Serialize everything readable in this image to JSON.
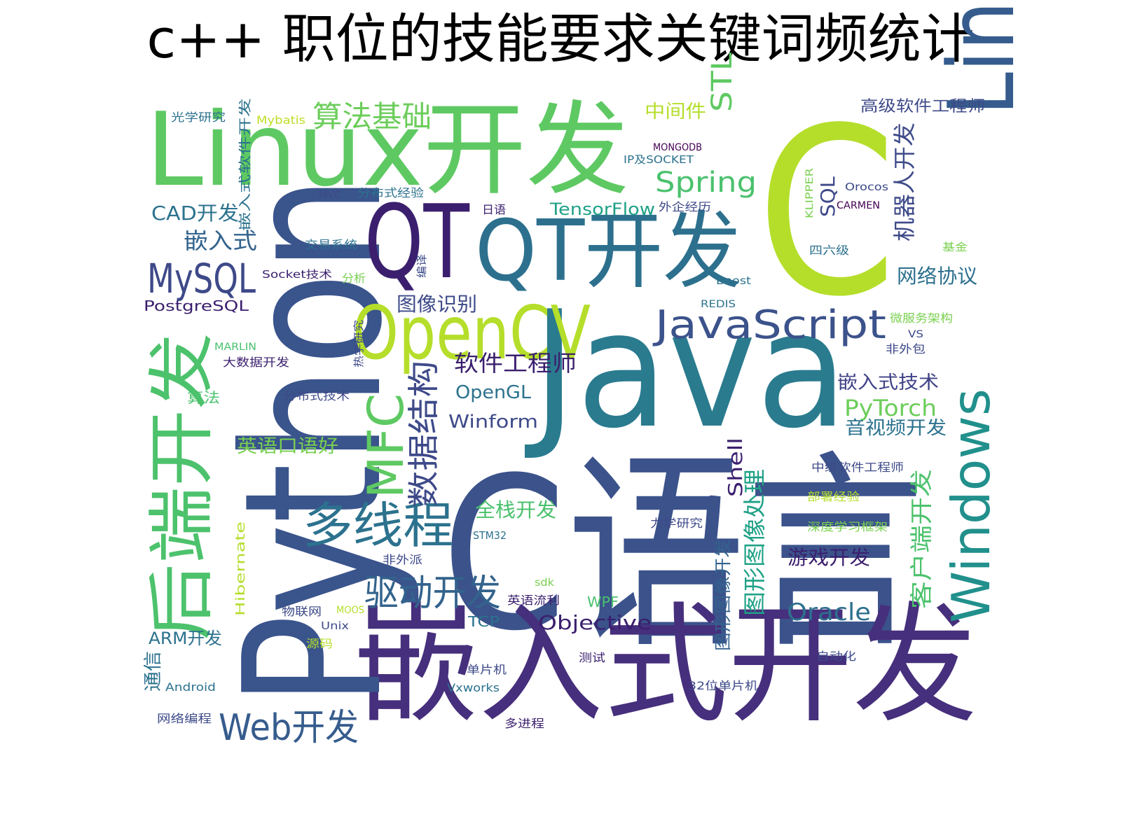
{
  "title": "c++ 职位的技能要求关键词频统计",
  "palette": "viridis",
  "words": [
    {
      "text": "Java",
      "color": "#2a7b8e"
    },
    {
      "text": "C语言",
      "color": "#3b528b"
    },
    {
      "text": "嵌入式开发",
      "color": "#462f7c"
    },
    {
      "text": "Python",
      "color": "#3a548c"
    },
    {
      "text": "C",
      "color": "#b5de2b"
    },
    {
      "text": "Linux开发",
      "color": "#5ec962"
    },
    {
      "text": "Linux",
      "color": "#365c8d"
    },
    {
      "text": "QT开发",
      "color": "#2d708e"
    },
    {
      "text": "QT",
      "color": "#3b1f6e"
    },
    {
      "text": "OpenCV",
      "color": "#b5de2b"
    },
    {
      "text": "后端开发",
      "color": "#4cc26c"
    },
    {
      "text": "Windows",
      "color": "#21908c"
    },
    {
      "text": "MFC",
      "color": "#5ec962"
    },
    {
      "text": "多线程",
      "color": "#2c728e"
    },
    {
      "text": "数据结构",
      "color": "#3e4a89"
    },
    {
      "text": "JavaScript",
      "color": "#3b528b"
    },
    {
      "text": "驱动开发",
      "color": "#33638d"
    },
    {
      "text": "Web开发",
      "color": "#365c8d"
    },
    {
      "text": "MySQL",
      "color": "#3e4989"
    },
    {
      "text": "算法基础",
      "color": "#6ccd5a"
    },
    {
      "text": "Spring",
      "color": "#4ac16d"
    },
    {
      "text": "STL",
      "color": "#5ec962"
    },
    {
      "text": "机器人开发",
      "color": "#3e4a89"
    },
    {
      "text": "客户端开发",
      "color": "#4cc26c"
    },
    {
      "text": "图形图像处理",
      "color": "#1fa187"
    },
    {
      "text": "Oracle",
      "color": "#2d708e"
    },
    {
      "text": "软件工程师",
      "color": "#3b1f6e"
    },
    {
      "text": "OpenGL",
      "color": "#2c728e"
    },
    {
      "text": "Winform",
      "color": "#3e4a89"
    },
    {
      "text": "PyTorch",
      "color": "#6ccd5a"
    },
    {
      "text": "嵌入式技术",
      "color": "#404387"
    },
    {
      "text": "音视频开发",
      "color": "#2c728e"
    },
    {
      "text": "游戏开发",
      "color": "#3b1f6e"
    },
    {
      "text": "全栈开发",
      "color": "#4ac16d"
    },
    {
      "text": "图像识别",
      "color": "#3e4a89"
    },
    {
      "text": "Objective",
      "color": "#3b1f6e"
    },
    {
      "text": "网络协议",
      "color": "#2d708e"
    },
    {
      "text": "嵌入式",
      "color": "#33638d"
    },
    {
      "text": "CAD开发",
      "color": "#2c728e"
    },
    {
      "text": "英语口语好",
      "color": "#7ad151"
    },
    {
      "text": "TensorFlow",
      "color": "#1fa187"
    },
    {
      "text": "Shell",
      "color": "#3b1f6e"
    },
    {
      "text": "图形图像开发",
      "color": "#33638d"
    },
    {
      "text": "ARM开发",
      "color": "#2c728e"
    },
    {
      "text": "SQL",
      "color": "#3e4a89"
    },
    {
      "text": "中间件",
      "color": "#b5de2b"
    },
    {
      "text": "高级软件工程师",
      "color": "#3e4a89"
    },
    {
      "text": "嵌入式软件开发",
      "color": "#2c728e"
    },
    {
      "text": "光学研究",
      "color": "#2c728e"
    },
    {
      "text": "Mybatis",
      "color": "#bddf26"
    },
    {
      "text": "MONGODB",
      "color": "#440154"
    },
    {
      "text": "IP及SOCKET",
      "color": "#2c728e"
    },
    {
      "text": "MVC",
      "color": "#3e4a89"
    },
    {
      "text": "分布式经验",
      "color": "#2c728e"
    },
    {
      "text": "日语",
      "color": "#3b1f6e"
    },
    {
      "text": "外企经历",
      "color": "#3e4a89"
    },
    {
      "text": "KLIPPER",
      "color": "#7ad151"
    },
    {
      "text": "Orocos",
      "color": "#3e4a89"
    },
    {
      "text": "CARMEN",
      "color": "#440154"
    },
    {
      "text": "交易系统",
      "color": "#2c728e"
    },
    {
      "text": "编译",
      "color": "#3e4a89"
    },
    {
      "text": "四六级",
      "color": "#2c728e"
    },
    {
      "text": "基金",
      "color": "#7ad151"
    },
    {
      "text": "Socket技术",
      "color": "#3b1f6e"
    },
    {
      "text": "分析",
      "color": "#7ad151"
    },
    {
      "text": "Boost",
      "color": "#2c728e"
    },
    {
      "text": "PostgreSQL",
      "color": "#3b1f6e"
    },
    {
      "text": "REDIS",
      "color": "#2c728e"
    },
    {
      "text": "热学研究",
      "color": "#3e4a89"
    },
    {
      "text": "微服务架构",
      "color": "#7ad151"
    },
    {
      "text": "MARLIN",
      "color": "#4ac16d"
    },
    {
      "text": "VS",
      "color": "#3e4a89"
    },
    {
      "text": "大数据开发",
      "color": "#3b1f6e"
    },
    {
      "text": "非外包",
      "color": "#3e4a89"
    },
    {
      "text": "算法",
      "color": "#4ac16d"
    },
    {
      "text": "分布式技术",
      "color": "#3e4a89"
    },
    {
      "text": "中级软件工程师",
      "color": "#3e4a89"
    },
    {
      "text": "部署经验",
      "color": "#b5de2b"
    },
    {
      "text": "力学研究",
      "color": "#3e4a89"
    },
    {
      "text": "深度学习框架",
      "color": "#7ad151"
    },
    {
      "text": "STM32",
      "color": "#2c728e"
    },
    {
      "text": "Hibernate",
      "color": "#b5de2b"
    },
    {
      "text": "非外派",
      "color": "#3e4a89"
    },
    {
      "text": "sdk",
      "color": "#7ad151"
    },
    {
      "text": "物联网",
      "color": "#3e4a89"
    },
    {
      "text": "MOOS",
      "color": "#b5de2b"
    },
    {
      "text": "英语流利",
      "color": "#3b1f6e"
    },
    {
      "text": "WPF",
      "color": "#4ac16d"
    },
    {
      "text": "TCP",
      "color": "#2c728e"
    },
    {
      "text": "Unix",
      "color": "#3e4a89"
    },
    {
      "text": "源码",
      "color": "#b5de2b"
    },
    {
      "text": "测试",
      "color": "#3b1f6e"
    },
    {
      "text": "自动化",
      "color": "#3e4a89"
    },
    {
      "text": "通信",
      "color": "#2c728e"
    },
    {
      "text": "Android",
      "color": "#2c728e"
    },
    {
      "text": "单片机",
      "color": "#3e4a89"
    },
    {
      "text": "Vxworks",
      "color": "#2c728e"
    },
    {
      "text": "32位单片机",
      "color": "#3e4a89"
    },
    {
      "text": "网络编程",
      "color": "#3e4a89"
    },
    {
      "text": "多进程",
      "color": "#3b1f6e"
    }
  ]
}
